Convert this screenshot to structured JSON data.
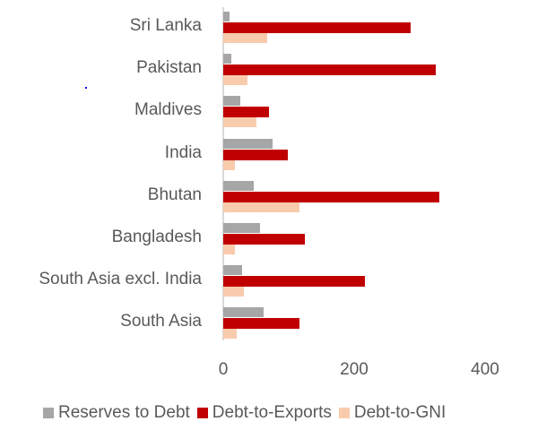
{
  "chart_data": {
    "type": "bar",
    "orientation": "horizontal",
    "title": "",
    "xlabel": "",
    "ylabel": "",
    "categories": [
      "Sri Lanka",
      "Pakistan",
      "Maldives",
      "India",
      "Bhutan",
      "Bangladesh",
      "South Asia excl. India",
      "South Asia"
    ],
    "series": [
      {
        "name": "Reserves to Debt",
        "color": "#a6a6a6",
        "values": [
          10,
          13,
          26,
          75,
          46,
          56,
          29,
          62
        ]
      },
      {
        "name": "Debt-to-Exports",
        "color": "#c00000",
        "values": [
          286,
          325,
          70,
          98,
          330,
          125,
          216,
          117
        ]
      },
      {
        "name": "Debt-to-GNI",
        "color": "#f8cbad",
        "values": [
          67,
          37,
          51,
          18,
          117,
          18,
          32,
          21
        ]
      }
    ],
    "xticks": [
      "0",
      "200",
      "400"
    ],
    "xlim": [
      0,
      450
    ],
    "grid": false,
    "legend_position": "bottom"
  }
}
